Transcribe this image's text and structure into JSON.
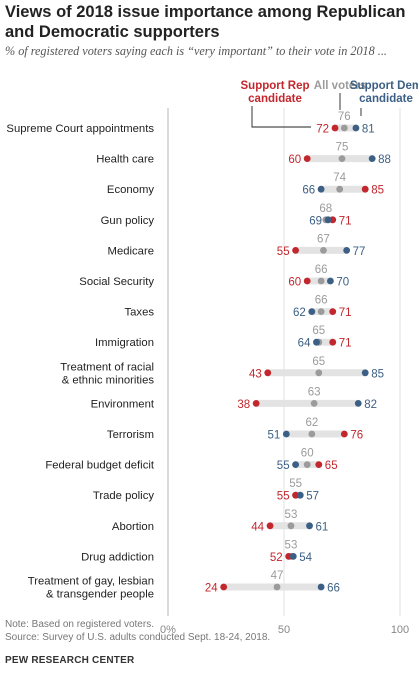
{
  "title": "Views of 2018 issue importance among Republican and Democratic supporters",
  "subtitle": "% of registered voters saying each is “very important” to their vote in 2018 ...",
  "note": "Note: Based on registered voters.",
  "source": "Source: Survey of U.S. adults conducted Sept. 18-24, 2018.",
  "org": "PEW RESEARCH CENTER",
  "colors": {
    "rep": "#c2272d",
    "all": "#9b9b9b",
    "dem": "#3c5f85",
    "bar": "#e3e3e3"
  },
  "chart_data": {
    "type": "dot",
    "xlim": [
      0,
      100
    ],
    "x_ticks": [
      "0%",
      "50",
      "100"
    ],
    "legend": [
      {
        "label": [
          "Support Rep",
          "candidate"
        ],
        "color": "#c2272d"
      },
      {
        "label": [
          "All voters"
        ],
        "color": "#9b9b9b"
      },
      {
        "label": [
          "Support Dem",
          "candidate"
        ],
        "color": "#3c5f85"
      }
    ],
    "series": [
      "Support Rep candidate",
      "All voters",
      "Support Dem candidate"
    ],
    "categories": [
      {
        "label": [
          "Supreme Court appointments"
        ],
        "rep": 72,
        "all": 76,
        "dem": 81
      },
      {
        "label": [
          "Health care"
        ],
        "rep": 60,
        "all": 75,
        "dem": 88
      },
      {
        "label": [
          "Economy"
        ],
        "rep": 85,
        "all": 74,
        "dem": 66
      },
      {
        "label": [
          "Gun policy"
        ],
        "rep": 71,
        "all": 68,
        "dem": 69
      },
      {
        "label": [
          "Medicare"
        ],
        "rep": 55,
        "all": 67,
        "dem": 77
      },
      {
        "label": [
          "Social Security"
        ],
        "rep": 60,
        "all": 66,
        "dem": 70
      },
      {
        "label": [
          "Taxes"
        ],
        "rep": 71,
        "all": 66,
        "dem": 62
      },
      {
        "label": [
          "Immigration"
        ],
        "rep": 71,
        "all": 65,
        "dem": 64
      },
      {
        "label": [
          "Treatment of racial",
          "& ethnic minorities"
        ],
        "rep": 43,
        "all": 65,
        "dem": 85
      },
      {
        "label": [
          "Environment"
        ],
        "rep": 38,
        "all": 63,
        "dem": 82
      },
      {
        "label": [
          "Terrorism"
        ],
        "rep": 76,
        "all": 62,
        "dem": 51
      },
      {
        "label": [
          "Federal budget deficit"
        ],
        "rep": 65,
        "all": 60,
        "dem": 55
      },
      {
        "label": [
          "Trade policy"
        ],
        "rep": 55,
        "all": 55,
        "dem": 57
      },
      {
        "label": [
          "Abortion"
        ],
        "rep": 44,
        "all": 53,
        "dem": 61
      },
      {
        "label": [
          "Drug addiction"
        ],
        "rep": 52,
        "all": 53,
        "dem": 54
      },
      {
        "label": [
          "Treatment of gay, lesbian",
          "& transgender people"
        ],
        "rep": 24,
        "all": 47,
        "dem": 66
      }
    ]
  }
}
